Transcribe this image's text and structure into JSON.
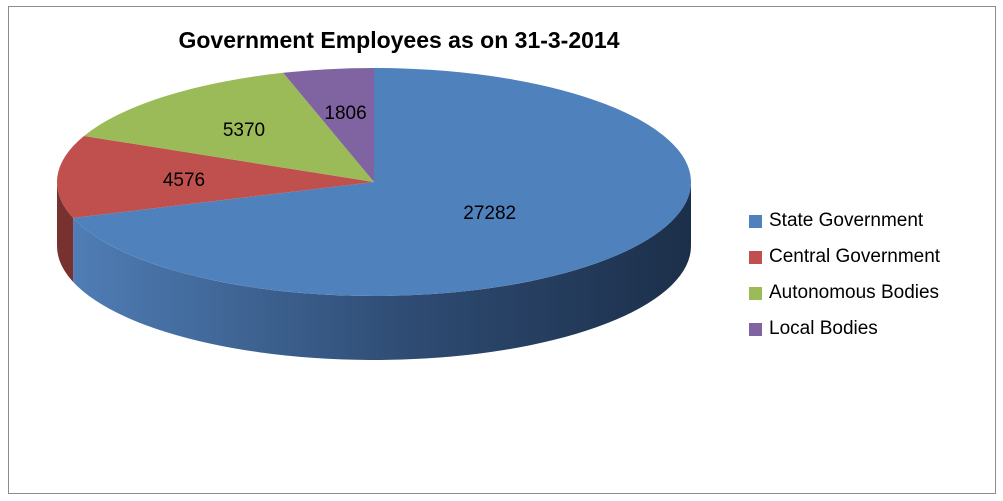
{
  "chart_data": {
    "type": "pie",
    "title": "Government Employees as on 31-3-2014",
    "categories": [
      "State Government",
      "Central Government",
      "Autonomous Bodies",
      "Local Bodies"
    ],
    "values": [
      27282,
      4576,
      5370,
      1806
    ],
    "colors": [
      "#4f81bd",
      "#c0504d",
      "#9bbb59",
      "#8064a2"
    ],
    "legend_position": "right",
    "style": "3d"
  }
}
